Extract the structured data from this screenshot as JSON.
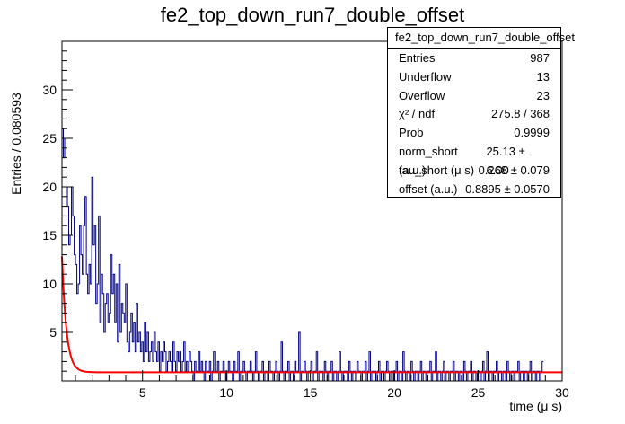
{
  "title": "fe2_top_down_run7_double_offset",
  "stats_box": {
    "title": "fe2_top_down_run7_double_offset",
    "rows": [
      {
        "label": "Entries",
        "value": "987"
      },
      {
        "label": "Underflow",
        "value": "13"
      },
      {
        "label": "Overflow",
        "value": "23"
      },
      {
        "label": "χ² / ndf",
        "value": "275.8 / 368"
      },
      {
        "label": "Prob",
        "value": "0.9999"
      },
      {
        "label": "norm_short (a.u.)",
        "value": "25.13 ± 6.00"
      },
      {
        "label": "tau_short (μ s)",
        "value": "0.268 ± 0.079"
      },
      {
        "label": "offset (a.u.)",
        "value": "0.8895 ± 0.0570"
      }
    ]
  },
  "colors": {
    "histogram": "#000080",
    "fit": "#ff0000",
    "axis": "#000000"
  },
  "chart_data": {
    "type": "histogram",
    "title": "fe2_top_down_run7_double_offset",
    "xlabel": "time (μ s)",
    "ylabel": "Entries / 0.080593",
    "xlim": [
      0.2,
      30
    ],
    "ylim": [
      0,
      35
    ],
    "xticks": [
      5,
      10,
      15,
      20,
      25,
      30
    ],
    "yticks": [
      5,
      10,
      15,
      20,
      25,
      30
    ],
    "bin_width": 0.080593,
    "x_start": 0.2,
    "bin_values": [
      26,
      23,
      25,
      20,
      18,
      14,
      15,
      20,
      17,
      13,
      12,
      9,
      10,
      16,
      13,
      11,
      16,
      19,
      11,
      9,
      12,
      10,
      21,
      14,
      16,
      8,
      10,
      17,
      6,
      11,
      9,
      5,
      8,
      9,
      6,
      7,
      13,
      9,
      11,
      6,
      10,
      4,
      12,
      5,
      8,
      7,
      6,
      10,
      4,
      3,
      5,
      7,
      4,
      6,
      3,
      8,
      4,
      5,
      3,
      4,
      2,
      6,
      3,
      5,
      2,
      3,
      4,
      2,
      5,
      3,
      2,
      4,
      1,
      3,
      2,
      4,
      3,
      1,
      2,
      3,
      2,
      1,
      4,
      2,
      1,
      3,
      2,
      3,
      1,
      2,
      4,
      1,
      2,
      1,
      3,
      2,
      1,
      0,
      2,
      1,
      1,
      3,
      1,
      2,
      1,
      0,
      2,
      1,
      1,
      2,
      0,
      1,
      3,
      1,
      1,
      2,
      0,
      1,
      1,
      2,
      1,
      0,
      1,
      2,
      1,
      1,
      0,
      2,
      1,
      1,
      3,
      0,
      1,
      1,
      2,
      1,
      0,
      1,
      1,
      2,
      1,
      0,
      1,
      3,
      1,
      0,
      1,
      1,
      2,
      0,
      1,
      1,
      0,
      2,
      1,
      1,
      0,
      1,
      2,
      1,
      0,
      1,
      4,
      1,
      0,
      1,
      1,
      2,
      0,
      1,
      1,
      0,
      2,
      1,
      1,
      5,
      0,
      1,
      1,
      2,
      1,
      0,
      1,
      1,
      2,
      0,
      1,
      1,
      3,
      0,
      1,
      1,
      1,
      0,
      2,
      1,
      0,
      1,
      1,
      2,
      0,
      1,
      1,
      0,
      1,
      3,
      1,
      0,
      1,
      1,
      1,
      0,
      2,
      1,
      0,
      1,
      1,
      0,
      2,
      1,
      1,
      0,
      1,
      1,
      2,
      0,
      1,
      3,
      0,
      1,
      1,
      1,
      0,
      1,
      2,
      0,
      1,
      1,
      0,
      1,
      2,
      1,
      0,
      1,
      1,
      0,
      1,
      2,
      0,
      1,
      1,
      0,
      3,
      1,
      0,
      1,
      1,
      0,
      2,
      1,
      0,
      1,
      1,
      0,
      1,
      2,
      0,
      1,
      1,
      0,
      1,
      1,
      2,
      0,
      1,
      1,
      3,
      0,
      1,
      1,
      0,
      1,
      2,
      0,
      1,
      1,
      0,
      1,
      1,
      2,
      0,
      1,
      1,
      0,
      1,
      1,
      0,
      2,
      1,
      0,
      1,
      1,
      2,
      0,
      1,
      1,
      0,
      1,
      1,
      0,
      1,
      2,
      0,
      1,
      3,
      0,
      1,
      1,
      0,
      1,
      1,
      2,
      0,
      1,
      1,
      0,
      1,
      1,
      0,
      2,
      1,
      0,
      1,
      1,
      0,
      1,
      1,
      2,
      0,
      1,
      1,
      0,
      1,
      1,
      0,
      1,
      2,
      0,
      1,
      1,
      0,
      1,
      1,
      0,
      1,
      2
    ],
    "fit": {
      "function": "norm_short * exp(-t / tau_short) + offset",
      "norm_short": 25.13,
      "tau_short": 0.268,
      "offset": 0.8895
    }
  }
}
